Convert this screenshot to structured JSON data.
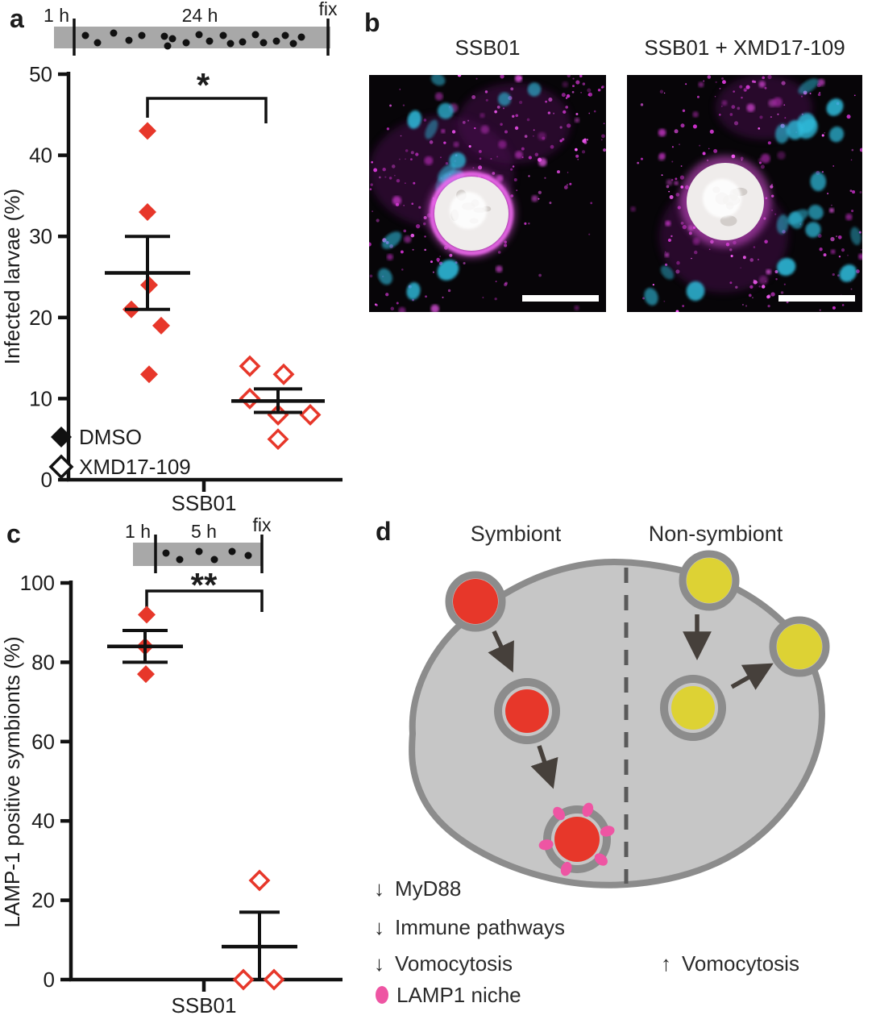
{
  "panels": {
    "a": {
      "label": "a",
      "timeline": {
        "start": "1 h",
        "middle": "24 h",
        "end": "fix"
      },
      "legend": [
        {
          "marker": "filled-diamond",
          "label": "DMSO"
        },
        {
          "marker": "open-diamond",
          "label": "XMD17-109"
        }
      ]
    },
    "b": {
      "label": "b",
      "images": [
        {
          "title": "SSB01"
        },
        {
          "title": "SSB01 + XMD17-109"
        }
      ]
    },
    "c": {
      "label": "c",
      "timeline": {
        "start": "1 h",
        "middle": "5 h",
        "end": "fix"
      }
    },
    "d": {
      "label": "d",
      "left_heading": "Symbiont",
      "right_heading": "Non-symbiont",
      "annotations": [
        {
          "symbol": "↓",
          "text": "MyD88"
        },
        {
          "symbol": "↓",
          "text": "Immune pathways"
        },
        {
          "symbol": "↓",
          "text": "Vomocytosis"
        },
        {
          "symbol": "↑",
          "text": "Vomocytosis"
        },
        {
          "symbol": "pink-dot",
          "text": "LAMP1 niche"
        }
      ],
      "colors": {
        "symbiont": "#e7372a",
        "non_symbiont": "#ddd234",
        "cell": "#c6c6c6",
        "membrane": "#8c8c8c",
        "lamp1": "#ee55a3",
        "arrow": "#46403b"
      }
    }
  },
  "chart_data": [
    {
      "id": "panel_a",
      "type": "scatter",
      "xlabel": "SSB01",
      "ylabel": "Infected larvae (%)",
      "ylim": [
        0,
        50
      ],
      "yticks": [
        0,
        10,
        20,
        30,
        40,
        50
      ],
      "significance": "*",
      "marker_color": "#e7372a",
      "series": [
        {
          "name": "DMSO",
          "marker": "filled-diamond",
          "values": [
            43,
            33,
            24,
            21,
            19,
            13
          ],
          "mean": 25.5,
          "sem_top": 30,
          "sem_bottom": 21
        },
        {
          "name": "XMD17-109",
          "marker": "open-diamond",
          "values": [
            14,
            13,
            10,
            8,
            8,
            5
          ],
          "mean": 9.7,
          "sem_top": 11.2,
          "sem_bottom": 8.3
        }
      ]
    },
    {
      "id": "panel_c",
      "type": "scatter",
      "xlabel": "SSB01",
      "ylabel": "LAMP-1 positive symbionts (%)",
      "ylim": [
        0,
        100
      ],
      "yticks": [
        0,
        20,
        40,
        60,
        80,
        100
      ],
      "significance": "**",
      "marker_color": "#e7372a",
      "series": [
        {
          "name": "DMSO",
          "marker": "filled-diamond",
          "values": [
            92,
            84,
            77
          ],
          "mean": 84,
          "sem_top": 88,
          "sem_bottom": 80
        },
        {
          "name": "XMD17-109",
          "marker": "open-diamond",
          "values": [
            25,
            0,
            0
          ],
          "mean": 8.3,
          "sem_top": 17,
          "sem_bottom": 0
        }
      ]
    }
  ]
}
